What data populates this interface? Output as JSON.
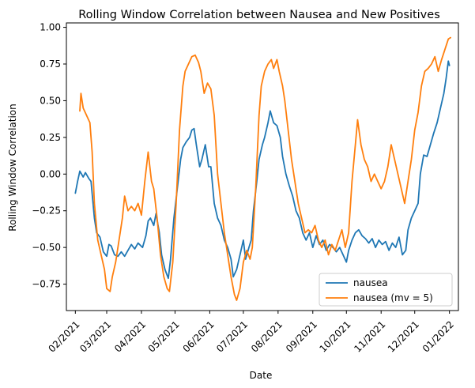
{
  "chart_data": {
    "type": "line",
    "title": "Rolling Window Correlation between Nausea and New Positives",
    "xlabel": "Date",
    "ylabel": "Rolling Window Correlation",
    "x_ticks": [
      "02/2021",
      "03/2021",
      "04/2021",
      "05/2021",
      "06/2021",
      "07/2021",
      "08/2021",
      "09/2021",
      "10/2021",
      "11/2021",
      "12/2021",
      "01/2022"
    ],
    "y_ticks": [
      "−0.75",
      "−0.50",
      "−0.25",
      "0.00",
      "0.25",
      "0.50",
      "0.75",
      "1.00"
    ],
    "xlim": [
      "2021-01-24",
      "2022-01-09"
    ],
    "ylim": [
      -0.93,
      1.03
    ],
    "grid": false,
    "legend_position": "lower-right",
    "series": [
      {
        "name": "nausea",
        "color": "#1f77b4",
        "points": [
          [
            "2021-02-01",
            -0.13
          ],
          [
            "2021-02-03",
            -0.05
          ],
          [
            "2021-02-05",
            0.02
          ],
          [
            "2021-02-08",
            -0.02
          ],
          [
            "2021-02-10",
            0.01
          ],
          [
            "2021-02-13",
            -0.03
          ],
          [
            "2021-02-15",
            -0.05
          ],
          [
            "2021-02-18",
            -0.3
          ],
          [
            "2021-02-20",
            -0.4
          ],
          [
            "2021-02-23",
            -0.43
          ],
          [
            "2021-02-26",
            -0.53
          ],
          [
            "2021-03-01",
            -0.56
          ],
          [
            "2021-03-03",
            -0.48
          ],
          [
            "2021-03-05",
            -0.49
          ],
          [
            "2021-03-08",
            -0.55
          ],
          [
            "2021-03-11",
            -0.56
          ],
          [
            "2021-03-14",
            -0.53
          ],
          [
            "2021-03-17",
            -0.56
          ],
          [
            "2021-03-20",
            -0.52
          ],
          [
            "2021-03-23",
            -0.48
          ],
          [
            "2021-03-26",
            -0.51
          ],
          [
            "2021-03-29",
            -0.47
          ],
          [
            "2021-04-02",
            -0.5
          ],
          [
            "2021-04-05",
            -0.42
          ],
          [
            "2021-04-07",
            -0.32
          ],
          [
            "2021-04-09",
            -0.3
          ],
          [
            "2021-04-12",
            -0.35
          ],
          [
            "2021-04-14",
            -0.27
          ],
          [
            "2021-04-17",
            -0.4
          ],
          [
            "2021-04-19",
            -0.55
          ],
          [
            "2021-04-22",
            -0.65
          ],
          [
            "2021-04-25",
            -0.71
          ],
          [
            "2021-04-27",
            -0.58
          ],
          [
            "2021-04-30",
            -0.3
          ],
          [
            "2021-05-03",
            -0.1
          ],
          [
            "2021-05-06",
            0.1
          ],
          [
            "2021-05-08",
            0.18
          ],
          [
            "2021-05-11",
            0.22
          ],
          [
            "2021-05-14",
            0.25
          ],
          [
            "2021-05-16",
            0.3
          ],
          [
            "2021-05-18",
            0.31
          ],
          [
            "2021-05-20",
            0.2
          ],
          [
            "2021-05-23",
            0.05
          ],
          [
            "2021-05-25",
            0.1
          ],
          [
            "2021-05-28",
            0.2
          ],
          [
            "2021-05-31",
            0.05
          ],
          [
            "2021-06-02",
            0.05
          ],
          [
            "2021-06-05",
            -0.2
          ],
          [
            "2021-06-08",
            -0.3
          ],
          [
            "2021-06-11",
            -0.35
          ],
          [
            "2021-06-14",
            -0.45
          ],
          [
            "2021-06-17",
            -0.5
          ],
          [
            "2021-06-20",
            -0.58
          ],
          [
            "2021-06-22",
            -0.7
          ],
          [
            "2021-06-25",
            -0.65
          ],
          [
            "2021-06-28",
            -0.55
          ],
          [
            "2021-07-01",
            -0.45
          ],
          [
            "2021-07-03",
            -0.58
          ],
          [
            "2021-07-06",
            -0.5
          ],
          [
            "2021-07-08",
            -0.45
          ],
          [
            "2021-07-10",
            -0.25
          ],
          [
            "2021-07-13",
            -0.05
          ],
          [
            "2021-07-15",
            0.1
          ],
          [
            "2021-07-18",
            0.2
          ],
          [
            "2021-07-20",
            0.25
          ],
          [
            "2021-07-23",
            0.35
          ],
          [
            "2021-07-25",
            0.43
          ],
          [
            "2021-07-28",
            0.35
          ],
          [
            "2021-07-31",
            0.33
          ],
          [
            "2021-08-03",
            0.25
          ],
          [
            "2021-08-05",
            0.12
          ],
          [
            "2021-08-08",
            0.0
          ],
          [
            "2021-08-11",
            -0.08
          ],
          [
            "2021-08-14",
            -0.15
          ],
          [
            "2021-08-17",
            -0.25
          ],
          [
            "2021-08-20",
            -0.3
          ],
          [
            "2021-08-23",
            -0.4
          ],
          [
            "2021-08-26",
            -0.45
          ],
          [
            "2021-08-29",
            -0.4
          ],
          [
            "2021-09-01",
            -0.5
          ],
          [
            "2021-09-04",
            -0.42
          ],
          [
            "2021-09-07",
            -0.48
          ],
          [
            "2021-09-10",
            -0.45
          ],
          [
            "2021-09-13",
            -0.52
          ],
          [
            "2021-09-16",
            -0.48
          ],
          [
            "2021-09-19",
            -0.5
          ],
          [
            "2021-09-22",
            -0.53
          ],
          [
            "2021-09-25",
            -0.5
          ],
          [
            "2021-09-28",
            -0.55
          ],
          [
            "2021-10-01",
            -0.6
          ],
          [
            "2021-10-03",
            -0.52
          ],
          [
            "2021-10-06",
            -0.45
          ],
          [
            "2021-10-09",
            -0.4
          ],
          [
            "2021-10-12",
            -0.38
          ],
          [
            "2021-10-15",
            -0.42
          ],
          [
            "2021-10-18",
            -0.44
          ],
          [
            "2021-10-21",
            -0.47
          ],
          [
            "2021-10-24",
            -0.44
          ],
          [
            "2021-10-27",
            -0.5
          ],
          [
            "2021-10-30",
            -0.45
          ],
          [
            "2021-11-02",
            -0.48
          ],
          [
            "2021-11-05",
            -0.46
          ],
          [
            "2021-11-08",
            -0.52
          ],
          [
            "2021-11-11",
            -0.47
          ],
          [
            "2021-11-14",
            -0.5
          ],
          [
            "2021-11-17",
            -0.43
          ],
          [
            "2021-11-20",
            -0.55
          ],
          [
            "2021-11-23",
            -0.52
          ],
          [
            "2021-11-25",
            -0.38
          ],
          [
            "2021-11-28",
            -0.3
          ],
          [
            "2021-12-01",
            -0.25
          ],
          [
            "2021-12-04",
            -0.2
          ],
          [
            "2021-12-06",
            0.0
          ],
          [
            "2021-12-09",
            0.13
          ],
          [
            "2021-12-12",
            0.12
          ],
          [
            "2021-12-15",
            0.2
          ],
          [
            "2021-12-18",
            0.28
          ],
          [
            "2021-12-21",
            0.35
          ],
          [
            "2021-12-24",
            0.45
          ],
          [
            "2021-12-27",
            0.55
          ],
          [
            "2021-12-29",
            0.65
          ],
          [
            "2021-12-31",
            0.77
          ],
          [
            "2022-01-01",
            0.74
          ]
        ]
      },
      {
        "name": "nausea (mv = 5)",
        "color": "#ff7f0e",
        "points": [
          [
            "2021-02-05",
            0.43
          ],
          [
            "2021-02-06",
            0.55
          ],
          [
            "2021-02-08",
            0.45
          ],
          [
            "2021-02-11",
            0.4
          ],
          [
            "2021-02-14",
            0.35
          ],
          [
            "2021-02-16",
            0.15
          ],
          [
            "2021-02-18",
            -0.2
          ],
          [
            "2021-02-21",
            -0.45
          ],
          [
            "2021-02-24",
            -0.55
          ],
          [
            "2021-02-27",
            -0.65
          ],
          [
            "2021-03-01",
            -0.78
          ],
          [
            "2021-03-04",
            -0.8
          ],
          [
            "2021-03-06",
            -0.7
          ],
          [
            "2021-03-09",
            -0.6
          ],
          [
            "2021-03-12",
            -0.45
          ],
          [
            "2021-03-15",
            -0.3
          ],
          [
            "2021-03-17",
            -0.15
          ],
          [
            "2021-03-20",
            -0.25
          ],
          [
            "2021-03-23",
            -0.22
          ],
          [
            "2021-03-26",
            -0.25
          ],
          [
            "2021-03-29",
            -0.2
          ],
          [
            "2021-04-01",
            -0.28
          ],
          [
            "2021-04-04",
            -0.05
          ],
          [
            "2021-04-07",
            0.15
          ],
          [
            "2021-04-10",
            -0.05
          ],
          [
            "2021-04-12",
            -0.1
          ],
          [
            "2021-04-15",
            -0.3
          ],
          [
            "2021-04-18",
            -0.55
          ],
          [
            "2021-04-21",
            -0.7
          ],
          [
            "2021-04-24",
            -0.78
          ],
          [
            "2021-04-26",
            -0.8
          ],
          [
            "2021-04-29",
            -0.6
          ],
          [
            "2021-05-02",
            -0.2
          ],
          [
            "2021-05-05",
            0.3
          ],
          [
            "2021-05-08",
            0.6
          ],
          [
            "2021-05-10",
            0.7
          ],
          [
            "2021-05-13",
            0.75
          ],
          [
            "2021-05-16",
            0.8
          ],
          [
            "2021-05-19",
            0.81
          ],
          [
            "2021-05-22",
            0.76
          ],
          [
            "2021-05-24",
            0.7
          ],
          [
            "2021-05-27",
            0.55
          ],
          [
            "2021-05-30",
            0.62
          ],
          [
            "2021-06-02",
            0.58
          ],
          [
            "2021-06-05",
            0.4
          ],
          [
            "2021-06-08",
            0.0
          ],
          [
            "2021-06-11",
            -0.2
          ],
          [
            "2021-06-14",
            -0.4
          ],
          [
            "2021-06-17",
            -0.55
          ],
          [
            "2021-06-20",
            -0.7
          ],
          [
            "2021-06-23",
            -0.82
          ],
          [
            "2021-06-25",
            -0.86
          ],
          [
            "2021-06-28",
            -0.78
          ],
          [
            "2021-07-01",
            -0.6
          ],
          [
            "2021-07-04",
            -0.52
          ],
          [
            "2021-07-07",
            -0.58
          ],
          [
            "2021-07-09",
            -0.5
          ],
          [
            "2021-07-12",
            -0.1
          ],
          [
            "2021-07-15",
            0.4
          ],
          [
            "2021-07-17",
            0.6
          ],
          [
            "2021-07-20",
            0.7
          ],
          [
            "2021-07-23",
            0.75
          ],
          [
            "2021-07-26",
            0.78
          ],
          [
            "2021-07-28",
            0.72
          ],
          [
            "2021-07-31",
            0.78
          ],
          [
            "2021-08-02",
            0.7
          ],
          [
            "2021-08-05",
            0.6
          ],
          [
            "2021-08-07",
            0.5
          ],
          [
            "2021-08-10",
            0.3
          ],
          [
            "2021-08-13",
            0.1
          ],
          [
            "2021-08-16",
            -0.05
          ],
          [
            "2021-08-19",
            -0.2
          ],
          [
            "2021-08-22",
            -0.3
          ],
          [
            "2021-08-25",
            -0.4
          ],
          [
            "2021-08-28",
            -0.38
          ],
          [
            "2021-08-31",
            -0.4
          ],
          [
            "2021-09-03",
            -0.35
          ],
          [
            "2021-09-06",
            -0.45
          ],
          [
            "2021-09-09",
            -0.5
          ],
          [
            "2021-09-12",
            -0.45
          ],
          [
            "2021-09-15",
            -0.55
          ],
          [
            "2021-09-18",
            -0.48
          ],
          [
            "2021-09-21",
            -0.52
          ],
          [
            "2021-09-24",
            -0.45
          ],
          [
            "2021-09-27",
            -0.38
          ],
          [
            "2021-09-30",
            -0.5
          ],
          [
            "2021-10-03",
            -0.4
          ],
          [
            "2021-10-06",
            -0.05
          ],
          [
            "2021-10-09",
            0.2
          ],
          [
            "2021-10-11",
            0.37
          ],
          [
            "2021-10-14",
            0.2
          ],
          [
            "2021-10-17",
            0.1
          ],
          [
            "2021-10-20",
            0.05
          ],
          [
            "2021-10-23",
            -0.05
          ],
          [
            "2021-10-26",
            0.0
          ],
          [
            "2021-10-29",
            -0.05
          ],
          [
            "2021-11-01",
            -0.1
          ],
          [
            "2021-11-04",
            -0.05
          ],
          [
            "2021-11-07",
            0.05
          ],
          [
            "2021-11-10",
            0.2
          ],
          [
            "2021-11-13",
            0.1
          ],
          [
            "2021-11-16",
            0.0
          ],
          [
            "2021-11-19",
            -0.1
          ],
          [
            "2021-11-22",
            -0.2
          ],
          [
            "2021-11-25",
            -0.05
          ],
          [
            "2021-11-28",
            0.1
          ],
          [
            "2021-12-01",
            0.3
          ],
          [
            "2021-12-04",
            0.42
          ],
          [
            "2021-12-07",
            0.6
          ],
          [
            "2021-12-10",
            0.7
          ],
          [
            "2021-12-13",
            0.72
          ],
          [
            "2021-12-16",
            0.75
          ],
          [
            "2021-12-19",
            0.8
          ],
          [
            "2021-12-22",
            0.7
          ],
          [
            "2021-12-25",
            0.78
          ],
          [
            "2021-12-28",
            0.85
          ],
          [
            "2021-12-31",
            0.92
          ],
          [
            "2022-01-02",
            0.93
          ]
        ]
      }
    ]
  }
}
